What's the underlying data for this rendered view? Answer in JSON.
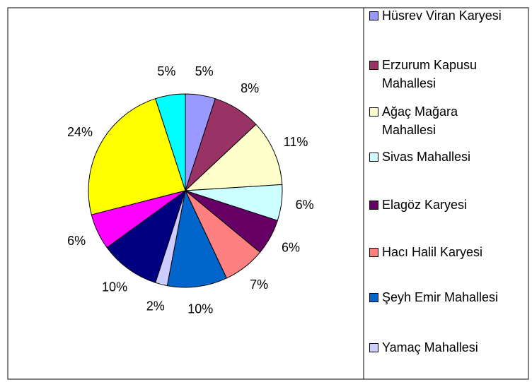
{
  "chart_data": {
    "type": "pie",
    "categories": [
      "Hüsrev Viran Karyesi",
      "Erzurum Kapusu Mahallesi",
      "Ağaç Mağara Mahallesi",
      "Sivas Mahallesi",
      "Elagöz Karyesi",
      "Hacı Halil Karyesi",
      "Şeyh Emir Mahallesi",
      "Yamaç Mahallesi",
      null,
      null,
      null,
      null
    ],
    "values": [
      5,
      8,
      11,
      6,
      6,
      7,
      10,
      2,
      10,
      6,
      24,
      5
    ],
    "value_labels": [
      "5%",
      "8%",
      "11%",
      "6%",
      "6%",
      "7%",
      "10%",
      "2%",
      "10%",
      "6%",
      "24%",
      "5%"
    ],
    "colors": [
      "#9999ff",
      "#993366",
      "#ffffcc",
      "#ccffff",
      "#660066",
      "#ff8080",
      "#0066cc",
      "#ccccff",
      "#000080",
      "#ff00ff",
      "#ffff00",
      "#00ffff"
    ],
    "legend": "right"
  }
}
